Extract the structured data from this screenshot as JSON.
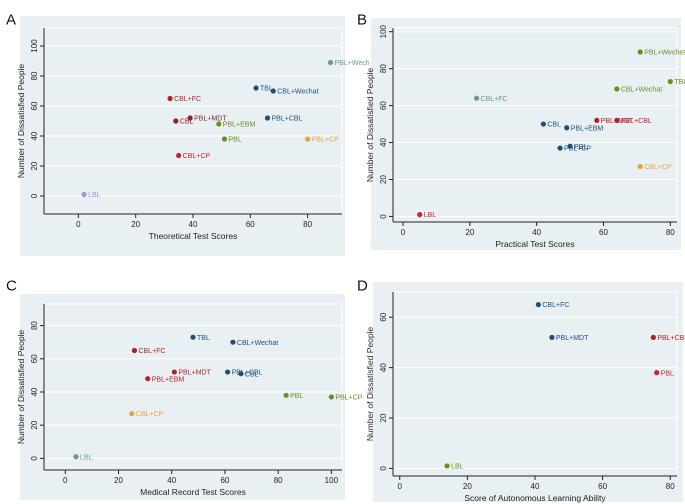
{
  "chart_data": [
    {
      "type": "scatter",
      "panel_letter": "A",
      "xlabel": "Theoretical Test Scores",
      "ylabel": "Number of Dissatisfied People",
      "xlim": [
        -12,
        92
      ],
      "ylim": [
        -12,
        112
      ],
      "xticks": [
        0,
        20,
        40,
        60,
        80
      ],
      "yticks": [
        0,
        20,
        40,
        60,
        80,
        100
      ],
      "points": [
        {
          "label": "PBL+Wech",
          "x": 88,
          "y": 89,
          "color": "#6a9a8c"
        },
        {
          "label": "TBL",
          "x": 62,
          "y": 72,
          "color": "#1f4e79"
        },
        {
          "label": "CBL+Wechat",
          "x": 68,
          "y": 70,
          "color": "#1f4e79"
        },
        {
          "label": "CBL+FC",
          "x": 32,
          "y": 65,
          "color": "#b22222"
        },
        {
          "label": "PBL+MDT",
          "x": 39,
          "y": 52,
          "color": "#8b2323"
        },
        {
          "label": "CBL",
          "x": 34,
          "y": 50,
          "color": "#8b2323"
        },
        {
          "label": "PBL+EBM",
          "x": 49,
          "y": 48,
          "color": "#6b8e23"
        },
        {
          "label": "PBL+CBL",
          "x": 66,
          "y": 52,
          "color": "#1f4e79"
        },
        {
          "label": "PBL",
          "x": 51,
          "y": 38,
          "color": "#6b8e23"
        },
        {
          "label": "PBL+CP",
          "x": 80,
          "y": 38,
          "color": "#e8a33d"
        },
        {
          "label": "CBL+CP",
          "x": 35,
          "y": 27,
          "color": "#cc1f2a"
        },
        {
          "label": "LBL",
          "x": 2,
          "y": 1,
          "color": "#9a96d6"
        }
      ]
    },
    {
      "type": "scatter",
      "panel_letter": "B",
      "xlabel": "Practical Test Scores",
      "ylabel": "Number of Dissatisfied People",
      "xlim": [
        -3,
        82
      ],
      "ylim": [
        -3,
        102
      ],
      "xticks": [
        0,
        20,
        40,
        60,
        80
      ],
      "yticks": [
        0,
        20,
        40,
        60,
        80,
        100
      ],
      "points": [
        {
          "label": "PBL+Wechet",
          "x": 71,
          "y": 89,
          "color": "#6b8e23"
        },
        {
          "label": "TBL",
          "x": 80,
          "y": 73,
          "color": "#6b8e23"
        },
        {
          "label": "CBL+Wechat",
          "x": 64,
          "y": 69,
          "color": "#6b8e23"
        },
        {
          "label": "CBL+FC",
          "x": 22,
          "y": 64,
          "color": "#6a9a8c"
        },
        {
          "label": "CBL",
          "x": 42,
          "y": 50,
          "color": "#1f4e79"
        },
        {
          "label": "PBL+EBM",
          "x": 49,
          "y": 48,
          "color": "#1f4e79"
        },
        {
          "label": "PBL+MDT",
          "x": 58,
          "y": 52,
          "color": "#b22222"
        },
        {
          "label": "PBL+CBL",
          "x": 64,
          "y": 52,
          "color": "#b22222"
        },
        {
          "label": "PBL+CP",
          "x": 47,
          "y": 37,
          "color": "#1f4e79"
        },
        {
          "label": "PBL",
          "x": 50,
          "y": 38,
          "color": "#1f4e79"
        },
        {
          "label": "CBL+CP",
          "x": 71,
          "y": 27,
          "color": "#e8a33d"
        },
        {
          "label": "LBL",
          "x": 5,
          "y": 1,
          "color": "#cc1f2a"
        }
      ]
    },
    {
      "type": "scatter",
      "panel_letter": "C",
      "xlabel": "Medical Record Test Scores",
      "ylabel": "Number of Dissatisfied People",
      "xlim": [
        -8,
        104
      ],
      "ylim": [
        -7,
        93
      ],
      "xticks": [
        0,
        20,
        40,
        60,
        80,
        100
      ],
      "yticks": [
        0,
        20,
        40,
        60,
        80
      ],
      "points": [
        {
          "label": "TBL",
          "x": 48,
          "y": 73,
          "color": "#1f4e79"
        },
        {
          "label": "CBL+Wechat",
          "x": 63,
          "y": 70,
          "color": "#1f4e79"
        },
        {
          "label": "CBL+FC",
          "x": 26,
          "y": 65,
          "color": "#b22222"
        },
        {
          "label": "PBL+MDT",
          "x": 41,
          "y": 52,
          "color": "#b22222"
        },
        {
          "label": "PBL+CBL",
          "x": 61,
          "y": 52,
          "color": "#1f4e79"
        },
        {
          "label": "CBL",
          "x": 66,
          "y": 51,
          "color": "#1f4e79"
        },
        {
          "label": "PBL+EBM",
          "x": 31,
          "y": 48,
          "color": "#b22222"
        },
        {
          "label": "PBL",
          "x": 83,
          "y": 38,
          "color": "#6b8e23"
        },
        {
          "label": "PBL+CP",
          "x": 100,
          "y": 37,
          "color": "#6b8e23"
        },
        {
          "label": "CBL+CP",
          "x": 25,
          "y": 27,
          "color": "#e8a33d"
        },
        {
          "label": "LBL",
          "x": 4,
          "y": 1,
          "color": "#6a9a8c"
        }
      ]
    },
    {
      "type": "scatter",
      "panel_letter": "D",
      "xlabel": "Score of Autonomous Learning Ability",
      "ylabel": "Number of Dissatisfied People",
      "xlim": [
        -2,
        82
      ],
      "ylim": [
        -3,
        70
      ],
      "xticks": [
        0,
        20,
        40,
        60,
        80
      ],
      "yticks": [
        0,
        20,
        40,
        60
      ],
      "points": [
        {
          "label": "CBL+FC",
          "x": 41,
          "y": 65,
          "color": "#1f4e79"
        },
        {
          "label": "PBL+MDT",
          "x": 45,
          "y": 52,
          "color": "#1f4e79"
        },
        {
          "label": "PBL+CBL",
          "x": 75,
          "y": 52,
          "color": "#b22222"
        },
        {
          "label": "PBL",
          "x": 76,
          "y": 38,
          "color": "#cc1f2a"
        },
        {
          "label": "LBL",
          "x": 14,
          "y": 1,
          "color": "#6b8e23"
        }
      ]
    }
  ],
  "colors": {
    "plot_background": "#e8f0f3",
    "outer_background": "#ffffff",
    "axis": "#222222",
    "grid": "#ffffff"
  }
}
